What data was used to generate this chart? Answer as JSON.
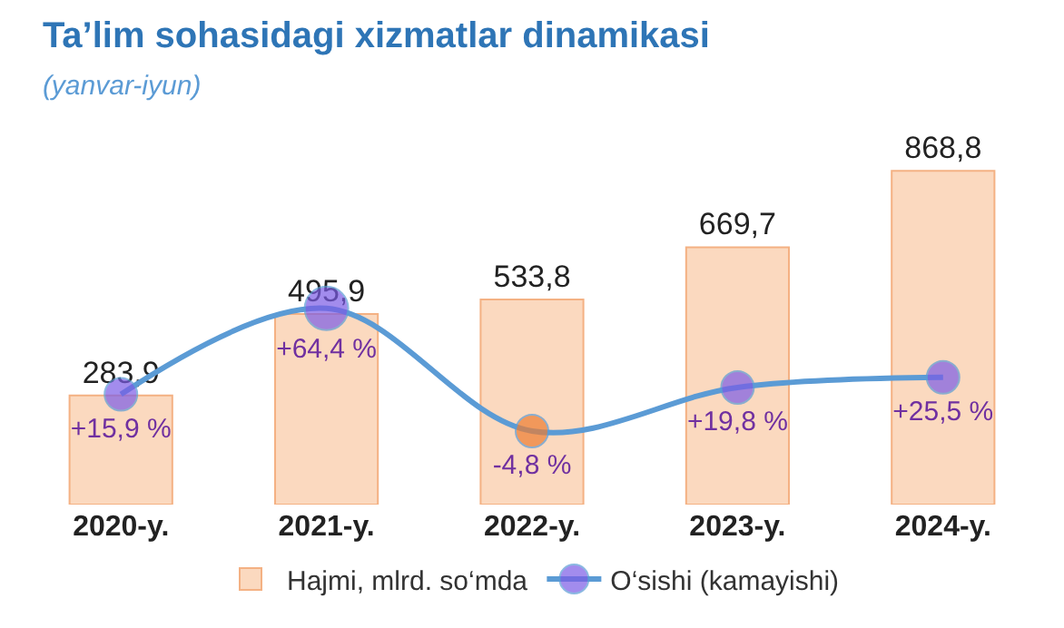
{
  "chart_data": {
    "type": "bar",
    "title": "Ta’lim sohasidagi xizmatlar dinamikasi",
    "subtitle": "(yanvar-iyun)",
    "categories": [
      "2020-y.",
      "2021-y.",
      "2022-y.",
      "2023-y.",
      "2024-y."
    ],
    "series": [
      {
        "name": "Hajmi, mlrd. so‘mda",
        "color": "#fbd9bf",
        "values": [
          283.9,
          495.9,
          533.8,
          669.7,
          868.8
        ],
        "value_labels": [
          "283,9",
          "495,9",
          "533,8",
          "669,7",
          "868,8"
        ]
      },
      {
        "name": "O‘sishi (kamayishi)",
        "type": "line",
        "axis": "y2",
        "color": "#5b9bd5",
        "colors": [
          "#7b5ce6",
          "#7b5ce6",
          "#ed7d31",
          "#7b5ce6",
          "#7b5ce6"
        ],
        "marker": "circle",
        "values": [
          15.9,
          64.4,
          -4.8,
          19.8,
          25.5
        ],
        "value_labels": [
          "+15,9 %",
          "+64,4 %",
          "-4,8 %",
          "+19,8 %",
          "+25,5 %"
        ]
      }
    ],
    "tick_labels": "x",
    "legend": "bottom"
  }
}
